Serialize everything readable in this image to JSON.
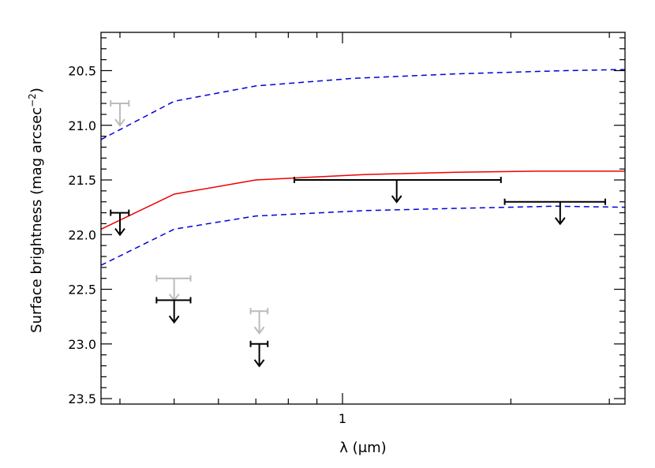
{
  "chart_data": {
    "type": "line",
    "xlabel": "λ (μm)",
    "ylabel": "Surface brightness (mag arcsec",
    "ylabel_sup": "−2",
    "ylabel_close": ")",
    "x_scale": "log",
    "xlim": [
      0.37,
      3.2
    ],
    "ylim": [
      23.55,
      20.15
    ],
    "y_inverted": true,
    "x_tick_labels": [
      {
        "value": 1,
        "label": "1"
      }
    ],
    "y_tick_labels": [
      {
        "value": 20.5,
        "label": "20.5"
      },
      {
        "value": 21.0,
        "label": "21.0"
      },
      {
        "value": 21.5,
        "label": "21.5"
      },
      {
        "value": 22.0,
        "label": "22.0"
      },
      {
        "value": 22.5,
        "label": "22.5"
      },
      {
        "value": 23.0,
        "label": "23.0"
      },
      {
        "value": 23.5,
        "label": "23.5"
      }
    ],
    "grid": false,
    "series": [
      {
        "style": "dashed",
        "color": "#0000dd",
        "x": [
          0.37,
          0.5,
          0.7,
          1.05,
          1.6,
          2.5,
          3.2
        ],
        "y": [
          21.13,
          20.78,
          20.64,
          20.57,
          20.53,
          20.5,
          20.49
        ]
      },
      {
        "style": "solid",
        "color": "#ee0000",
        "x": [
          0.37,
          0.5,
          0.7,
          1.1,
          1.6,
          2.2,
          3.2
        ],
        "y": [
          21.95,
          21.63,
          21.5,
          21.45,
          21.43,
          21.42,
          21.42
        ]
      },
      {
        "style": "dashed",
        "color": "#0000dd",
        "x": [
          0.37,
          0.5,
          0.7,
          1.1,
          1.6,
          2.4,
          3.2
        ],
        "y": [
          22.28,
          21.95,
          21.83,
          21.78,
          21.76,
          21.74,
          21.75
        ]
      }
    ],
    "upper_limits": [
      {
        "x": 0.4,
        "xerr": [
          0.385,
          0.415
        ],
        "y": 20.8,
        "color": "#bbbbbb"
      },
      {
        "x": 0.4,
        "xerr": [
          0.385,
          0.415
        ],
        "y": 21.8,
        "color": "#000000"
      },
      {
        "x": 0.5,
        "xerr": [
          0.465,
          0.535
        ],
        "y": 22.4,
        "color": "#bbbbbb"
      },
      {
        "x": 0.5,
        "xerr": [
          0.465,
          0.535
        ],
        "y": 22.6,
        "color": "#000000"
      },
      {
        "x": 0.71,
        "xerr": [
          0.685,
          0.735
        ],
        "y": 22.7,
        "color": "#bbbbbb"
      },
      {
        "x": 0.71,
        "xerr": [
          0.685,
          0.735
        ],
        "y": 23.0,
        "color": "#000000"
      },
      {
        "x": 1.25,
        "xerr": [
          0.82,
          1.92
        ],
        "y": 21.5,
        "color": "#000000"
      },
      {
        "x": 2.45,
        "xerr": [
          1.95,
          2.95
        ],
        "y": 21.7,
        "color": "#000000"
      }
    ]
  }
}
